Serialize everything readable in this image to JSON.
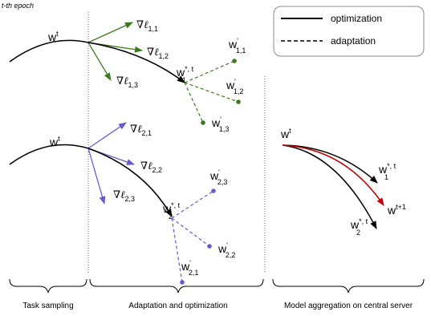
{
  "epoch_label": "t-th epoch",
  "legend": {
    "solid_label": "optimization",
    "dashed_label": "adaptation"
  },
  "colors": {
    "green": "#3d7a1e",
    "purple": "#6a5acd",
    "red": "#c00000",
    "black": "#000000"
  },
  "captions": {
    "left": "Task sampling",
    "middle": "Adaptation and optimization",
    "right": "Model aggregation on central server"
  },
  "math": {
    "w": "w",
    "t": "t",
    "star_t": "*, t",
    "t_plus_1": "t+1",
    "prime": "'",
    "grad": "∇ℓ",
    "sub_1": "1",
    "sub_2": "2",
    "sub_11": "1,1",
    "sub_12": "1,2",
    "sub_13": "1,3",
    "sub_21": "2,1",
    "sub_22": "2,2",
    "sub_23": "2,3"
  }
}
